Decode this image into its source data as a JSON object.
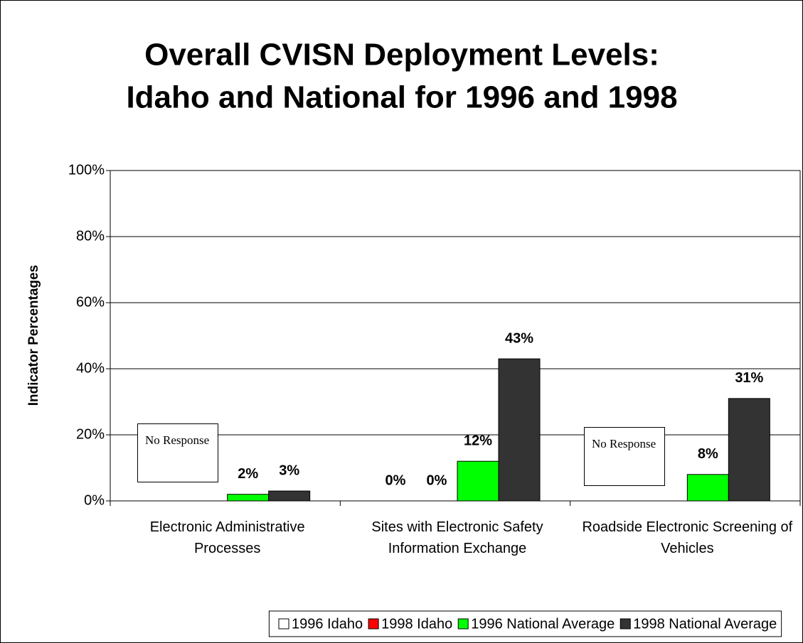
{
  "chart_data": {
    "type": "bar",
    "title": "Overall CVISN Deployment Levels: Idaho and National for 1996 and 1998",
    "y_label": "Indicator Percentages",
    "categories": [
      "Electronic Administrative Processes",
      "Sites with Electronic Safety Information Exchange",
      "Roadside Electronic Screening of Vehicles"
    ],
    "series": [
      {
        "name": "1996 Idaho",
        "color": "#ffffff",
        "values": [
          null,
          0,
          null
        ],
        "value_labels": [
          null,
          "0%",
          null
        ]
      },
      {
        "name": "1998 Idaho",
        "color": "#ff0000",
        "values": [
          null,
          0,
          null
        ],
        "value_labels": [
          null,
          "0%",
          null
        ]
      },
      {
        "name": "1996 National Average",
        "color": "#00ff00",
        "values": [
          2,
          12,
          8
        ],
        "value_labels": [
          "2%",
          "12%",
          "8%"
        ]
      },
      {
        "name": "1998 National Average",
        "color": "#333333",
        "values": [
          3,
          43,
          31
        ],
        "value_labels": [
          "3%",
          "43%",
          "31%"
        ]
      }
    ],
    "annotations": [
      "No Response",
      "No Response"
    ],
    "ylim": [
      0,
      100
    ],
    "yticks": [
      {
        "value": 0,
        "label": "0%"
      },
      {
        "value": 20,
        "label": "20%"
      },
      {
        "value": 40,
        "label": "40%"
      },
      {
        "value": 60,
        "label": "60%"
      },
      {
        "value": 80,
        "label": "80%"
      },
      {
        "value": 100,
        "label": "100%"
      }
    ],
    "grid": true,
    "legend": "bottom"
  }
}
